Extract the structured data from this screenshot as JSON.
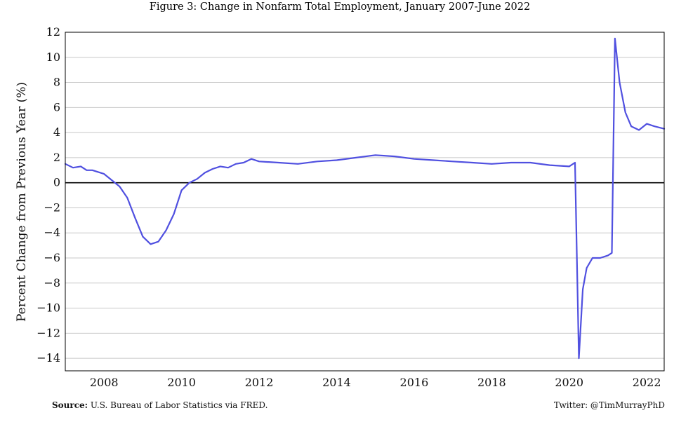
{
  "chart_data": {
    "type": "line",
    "title": "Figure 3: Change in Nonfarm Total Employment, January 2007-June 2022",
    "xlabel": "",
    "ylabel": "Percent Change from Previous Year (%)",
    "xlim": [
      2007.0,
      2022.45
    ],
    "ylim": [
      -15,
      12
    ],
    "x_ticks": [
      "2008",
      "2010",
      "2012",
      "2014",
      "2016",
      "2018",
      "2020",
      "2022"
    ],
    "y_ticks": [
      "12",
      "10",
      "8",
      "6",
      "4",
      "2",
      "0",
      "−2",
      "−4",
      "−6",
      "−8",
      "−10",
      "−12",
      "−14"
    ],
    "grid": "horizontal",
    "line_color": "#5050e0",
    "zero_line": true,
    "series": [
      {
        "x": [
          2007.0,
          2007.2,
          2007.4,
          2007.55,
          2007.7,
          2008.0,
          2008.2,
          2008.4,
          2008.6,
          2008.8,
          2009.0,
          2009.2,
          2009.4,
          2009.6,
          2009.8,
          2010.0,
          2010.2,
          2010.4,
          2010.6,
          2010.8,
          2011.0,
          2011.2,
          2011.4,
          2011.6,
          2011.8,
          2012.0,
          2012.5,
          2013.0,
          2013.5,
          2014.0,
          2014.5,
          2015.0,
          2015.5,
          2016.0,
          2016.5,
          2017.0,
          2017.5,
          2018.0,
          2018.5,
          2019.0,
          2019.5,
          2020.0,
          2020.15,
          2020.25,
          2020.35,
          2020.45,
          2020.6,
          2020.8,
          2021.0,
          2021.1,
          2021.18,
          2021.3,
          2021.45,
          2021.6,
          2021.8,
          2022.0,
          2022.2,
          2022.45
        ],
        "y": [
          1.5,
          1.2,
          1.3,
          1.0,
          1.0,
          0.7,
          0.2,
          -0.3,
          -1.2,
          -2.8,
          -4.3,
          -4.9,
          -4.7,
          -3.8,
          -2.5,
          -0.6,
          0.0,
          0.3,
          0.8,
          1.1,
          1.3,
          1.2,
          1.5,
          1.6,
          1.9,
          1.7,
          1.6,
          1.5,
          1.7,
          1.8,
          2.0,
          2.2,
          2.1,
          1.9,
          1.8,
          1.7,
          1.6,
          1.5,
          1.6,
          1.6,
          1.4,
          1.3,
          1.6,
          -14.0,
          -8.5,
          -6.8,
          -6.0,
          -6.0,
          -5.8,
          -5.6,
          11.5,
          8.0,
          5.6,
          4.5,
          4.2,
          4.7,
          4.5,
          4.3
        ]
      }
    ]
  },
  "footer": {
    "source_label": "Source:",
    "source_text": "U.S. Bureau of Labor Statistics via FRED.",
    "credit": "Twitter: @TimMurrayPhD"
  }
}
